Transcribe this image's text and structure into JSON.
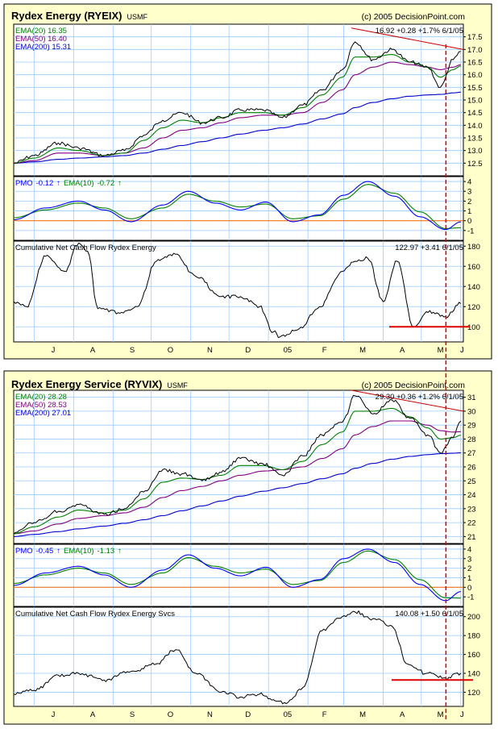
{
  "colors": {
    "panel_bg": "#ffffcc",
    "grid": "#99ccff",
    "price": "#000000",
    "ema20": "#008000",
    "ema50": "#800080",
    "ema200": "#0000cc",
    "pmo": "#0000ff",
    "pmo_signal": "#008000",
    "zero_line": "#ff6600",
    "trend_line": "#cc0000",
    "marker_line": "#dd0000"
  },
  "month_labels": [
    "J",
    "A",
    "S",
    "O",
    "N",
    "D",
    "05",
    "F",
    "M",
    "A",
    "M",
    "J"
  ],
  "charts": [
    {
      "title": "Rydex Energy (RYEIX)",
      "exchange": "USMF",
      "copyright": "(c) 2005 DecisionPoint.com",
      "price_panel": {
        "legend": [
          "EMA(20) 16.35",
          "EMA(50) 16.40",
          "EMA(200) 15.31"
        ],
        "readout": "16.92  +0.28  +1.7%  6/1/05",
        "y_ticks": [
          "12.5",
          "13.0",
          "13.5",
          "14.0",
          "14.5",
          "15.0",
          "15.5",
          "16.0",
          "16.5",
          "17.0",
          "17.5"
        ]
      },
      "pmo_panel": {
        "label_pmo": "PMO",
        "pmo_value": "-0.12",
        "pmo_arrow": "↑",
        "label_signal": "EMA(10)",
        "signal_value": "-0.72",
        "signal_arrow": "↑",
        "y_ticks": [
          "-1",
          "0",
          "1",
          "2",
          "3",
          "4"
        ]
      },
      "flow_panel": {
        "label": "Cumulative Net Cash Flow Rydex Energy",
        "readout": "122.97  +3.41  6/1/05",
        "y_ticks": [
          "100",
          "120",
          "140",
          "160",
          "180"
        ]
      }
    },
    {
      "title": "Rydex Energy Service (RYVIX)",
      "exchange": "USMF",
      "copyright": "(c) 2005 DecisionPoint.com",
      "price_panel": {
        "legend": [
          "EMA(20) 28.28",
          "EMA(50) 28.53",
          "EMA(200) 27.01"
        ],
        "readout": "29.30  +0.36  +1.2%  6/1/05",
        "y_ticks": [
          "21",
          "22",
          "23",
          "24",
          "25",
          "26",
          "27",
          "28",
          "29",
          "30",
          "31"
        ]
      },
      "pmo_panel": {
        "label_pmo": "PMO",
        "pmo_value": "-0.45",
        "pmo_arrow": "↑",
        "label_signal": "EMA(10)",
        "signal_value": "-1.13",
        "signal_arrow": "↑",
        "y_ticks": [
          "-1",
          "0",
          "1",
          "2",
          "3",
          "4"
        ]
      },
      "flow_panel": {
        "label": "Cumulative Net Cash Flow Rydex Energy Svcs",
        "readout": "140.08  +1.50  6/1/05",
        "y_ticks": [
          "120",
          "140",
          "160",
          "180",
          "200"
        ]
      }
    }
  ],
  "chart_data": [
    {
      "type": "line",
      "ylim": [
        12.0,
        18.0
      ],
      "x": [
        "2004-06-15",
        "2004-07-01",
        "2004-07-20",
        "2004-08-05",
        "2004-08-25",
        "2004-09-10",
        "2004-09-25",
        "2004-10-10",
        "2004-10-25",
        "2004-11-10",
        "2004-11-25",
        "2004-12-10",
        "2004-12-28",
        "2005-01-12",
        "2005-01-28",
        "2005-02-12",
        "2005-02-28",
        "2005-03-10",
        "2005-03-24",
        "2005-04-08",
        "2005-04-22",
        "2005-05-06",
        "2005-05-16",
        "2005-05-26",
        "2005-06-01"
      ],
      "series": [
        {
          "values": [
            12.5,
            12.8,
            13.3,
            13.1,
            12.8,
            13.0,
            13.6,
            14.2,
            14.5,
            14.1,
            14.3,
            14.6,
            14.6,
            14.3,
            14.8,
            15.4,
            16.2,
            17.3,
            16.6,
            17.0,
            16.5,
            16.3,
            15.5,
            16.6,
            16.92
          ]
        },
        {
          "values": [
            12.5,
            12.7,
            13.1,
            13.0,
            12.8,
            12.9,
            13.4,
            13.9,
            14.2,
            14.1,
            14.3,
            14.5,
            14.5,
            14.4,
            14.7,
            15.2,
            15.9,
            16.7,
            16.7,
            16.8,
            16.5,
            16.3,
            15.9,
            16.2,
            16.35
          ]
        },
        {
          "values": [
            12.5,
            12.6,
            12.9,
            12.9,
            12.8,
            12.9,
            13.1,
            13.5,
            13.8,
            13.9,
            14.1,
            14.3,
            14.4,
            14.4,
            14.5,
            14.9,
            15.4,
            16.0,
            16.3,
            16.5,
            16.4,
            16.3,
            16.2,
            16.3,
            16.4
          ]
        },
        {
          "values": [
            12.5,
            12.55,
            12.65,
            12.7,
            12.75,
            12.8,
            12.9,
            13.05,
            13.2,
            13.35,
            13.5,
            13.65,
            13.8,
            13.9,
            14.05,
            14.25,
            14.45,
            14.7,
            14.9,
            15.05,
            15.15,
            15.2,
            15.22,
            15.28,
            15.31
          ]
        }
      ]
    },
    {
      "type": "line",
      "ylim": [
        -2,
        4.5
      ],
      "x": [
        "2004-06-15",
        "2004-07-10",
        "2004-08-05",
        "2004-08-25",
        "2004-09-15",
        "2004-10-10",
        "2004-10-30",
        "2004-11-20",
        "2004-12-10",
        "2004-12-30",
        "2005-01-20",
        "2005-02-10",
        "2005-03-01",
        "2005-03-20",
        "2005-04-10",
        "2005-04-30",
        "2005-05-20",
        "2005-06-01"
      ],
      "series": [
        {
          "values": [
            0.1,
            1.3,
            2.0,
            1.1,
            -0.1,
            1.6,
            3.0,
            1.8,
            1.1,
            1.9,
            -0.1,
            0.6,
            2.6,
            4.0,
            2.5,
            0.4,
            -0.9,
            -0.12
          ]
        },
        {
          "values": [
            0.3,
            1.1,
            1.8,
            1.3,
            0.2,
            1.3,
            2.7,
            2.0,
            1.4,
            1.7,
            0.2,
            0.5,
            2.2,
            3.7,
            2.8,
            0.9,
            -0.8,
            -0.72
          ]
        }
      ]
    },
    {
      "type": "line",
      "ylim": [
        85,
        185
      ],
      "x": [
        "2004-06-15",
        "2004-06-25",
        "2004-07-10",
        "2004-07-25",
        "2004-08-05",
        "2004-08-12",
        "2004-08-20",
        "2004-09-05",
        "2004-09-20",
        "2004-10-05",
        "2004-10-20",
        "2004-11-05",
        "2004-11-25",
        "2004-12-10",
        "2004-12-25",
        "2005-01-05",
        "2005-01-10",
        "2005-01-25",
        "2005-02-10",
        "2005-02-28",
        "2005-03-10",
        "2005-03-20",
        "2005-04-01",
        "2005-04-12",
        "2005-04-25",
        "2005-05-05",
        "2005-05-20",
        "2005-06-01"
      ],
      "series": [
        {
          "values": [
            125,
            120,
            170,
            155,
            183,
            175,
            118,
            114,
            120,
            165,
            172,
            150,
            130,
            130,
            120,
            95,
            90,
            98,
            120,
            155,
            165,
            168,
            125,
            165,
            100,
            115,
            110,
            122.97
          ]
        }
      ]
    },
    {
      "type": "line",
      "ylim": [
        20.5,
        31.5
      ],
      "x": [
        "2004-06-15",
        "2004-07-01",
        "2004-07-20",
        "2004-08-05",
        "2004-08-25",
        "2004-09-10",
        "2004-09-25",
        "2004-10-10",
        "2004-10-25",
        "2004-11-10",
        "2004-11-25",
        "2004-12-10",
        "2004-12-28",
        "2005-01-12",
        "2005-01-28",
        "2005-02-12",
        "2005-02-28",
        "2005-03-10",
        "2005-03-24",
        "2005-04-08",
        "2005-04-22",
        "2005-05-06",
        "2005-05-16",
        "2005-05-26",
        "2005-06-01"
      ],
      "series": [
        {
          "values": [
            21.2,
            22.0,
            22.8,
            23.3,
            22.6,
            23.0,
            24.2,
            25.8,
            25.5,
            25.0,
            25.6,
            26.6,
            26.2,
            25.4,
            26.8,
            28.3,
            29.2,
            31.1,
            29.8,
            30.8,
            29.5,
            28.3,
            27.0,
            28.1,
            29.3
          ]
        },
        {
          "values": [
            21.2,
            21.7,
            22.4,
            22.9,
            22.7,
            22.9,
            23.7,
            24.9,
            25.2,
            25.1,
            25.4,
            26.1,
            26.1,
            25.8,
            26.4,
            27.6,
            28.5,
            30.0,
            30.0,
            30.2,
            29.6,
            28.8,
            28.0,
            28.1,
            28.28
          ]
        },
        {
          "values": [
            21.2,
            21.4,
            21.9,
            22.3,
            22.5,
            22.7,
            23.1,
            23.8,
            24.3,
            24.6,
            25.0,
            25.4,
            25.7,
            25.8,
            26.0,
            26.6,
            27.3,
            28.3,
            28.9,
            29.3,
            29.3,
            29.0,
            28.6,
            28.5,
            28.53
          ]
        },
        {
          "values": [
            21.0,
            21.15,
            21.35,
            21.55,
            21.75,
            21.95,
            22.2,
            22.5,
            22.85,
            23.2,
            23.55,
            23.9,
            24.25,
            24.5,
            24.8,
            25.15,
            25.5,
            25.9,
            26.25,
            26.55,
            26.75,
            26.88,
            26.95,
            26.98,
            27.01
          ]
        }
      ]
    },
    {
      "type": "line",
      "ylim": [
        -2,
        4.5
      ],
      "x": [
        "2004-06-15",
        "2004-07-10",
        "2004-08-05",
        "2004-08-25",
        "2004-09-15",
        "2004-10-10",
        "2004-10-30",
        "2004-11-20",
        "2004-12-10",
        "2004-12-30",
        "2005-01-20",
        "2005-02-10",
        "2005-03-01",
        "2005-03-20",
        "2005-04-10",
        "2005-04-30",
        "2005-05-20",
        "2005-06-01"
      ],
      "series": [
        {
          "values": [
            0.2,
            1.5,
            2.2,
            1.3,
            0.0,
            1.8,
            3.4,
            2.0,
            1.2,
            2.1,
            0.0,
            0.8,
            3.0,
            4.0,
            2.6,
            0.3,
            -1.4,
            -0.45
          ]
        },
        {
          "values": [
            0.4,
            1.3,
            2.0,
            1.5,
            0.3,
            1.5,
            3.1,
            2.2,
            1.5,
            1.9,
            0.3,
            0.7,
            2.6,
            3.8,
            2.9,
            0.8,
            -1.1,
            -1.13
          ]
        }
      ]
    },
    {
      "type": "line",
      "ylim": [
        105,
        210
      ],
      "x": [
        "2004-06-15",
        "2004-07-01",
        "2004-07-20",
        "2004-08-05",
        "2004-08-25",
        "2004-09-15",
        "2004-10-05",
        "2004-10-20",
        "2004-11-05",
        "2004-11-25",
        "2004-12-10",
        "2004-12-25",
        "2005-01-05",
        "2005-01-15",
        "2005-01-28",
        "2005-02-12",
        "2005-02-28",
        "2005-03-10",
        "2005-03-24",
        "2005-04-08",
        "2005-04-20",
        "2005-05-05",
        "2005-05-20",
        "2005-06-01"
      ],
      "series": [
        {
          "values": [
            118,
            122,
            138,
            140,
            133,
            142,
            150,
            165,
            140,
            120,
            115,
            118,
            112,
            108,
            125,
            185,
            200,
            205,
            198,
            190,
            150,
            140,
            135,
            140.08
          ]
        }
      ]
    }
  ]
}
